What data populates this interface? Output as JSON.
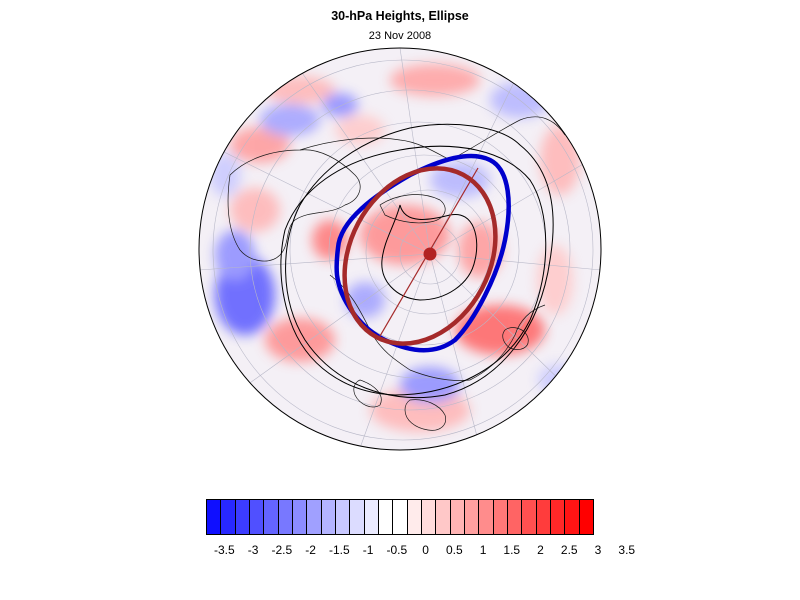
{
  "title": "30-hPa Heights, Ellipse",
  "subtitle": "23 Nov 2008",
  "map": {
    "projection": "orthographic",
    "pole_marker_color": "#b22222",
    "vortex_contour_color": "#0000cc",
    "ellipse_color": "#a52a2a",
    "height_contour_color": "#000000",
    "coastline_color": "#000000",
    "graticule_color": "#c8c8c8"
  },
  "colorbar": {
    "labels": [
      "-3.5",
      "-3",
      "-2.5",
      "-2",
      "-1.5",
      "-1",
      "-0.5",
      "0",
      "0.5",
      "1",
      "1.5",
      "2",
      "2.5",
      "3",
      "3.5"
    ],
    "colors": [
      "#0f0fff",
      "#2828ff",
      "#3c3cff",
      "#5050ff",
      "#6464ff",
      "#7878ff",
      "#8c8cff",
      "#a0a0ff",
      "#b4b4ff",
      "#c8c8ff",
      "#dcdcff",
      "#ebebff",
      "#ffffff",
      "#ffffff",
      "#ffebeb",
      "#ffdcdc",
      "#ffc8c8",
      "#ffb4b4",
      "#ffa0a0",
      "#ff8c8c",
      "#ff7878",
      "#ff6464",
      "#ff5050",
      "#ff3c3c",
      "#ff2828",
      "#ff1414",
      "#ff0000"
    ]
  }
}
